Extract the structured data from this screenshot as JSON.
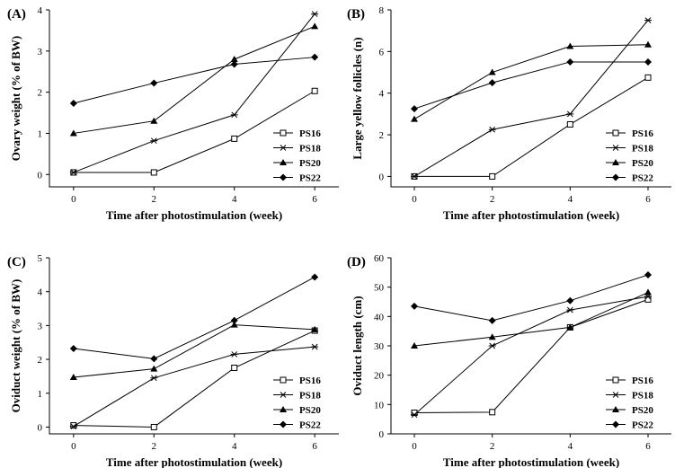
{
  "figure": {
    "legend_entries": [
      "PS16",
      "PS18",
      "PS20",
      "PS22"
    ]
  },
  "chart_data": [
    {
      "type": "line",
      "panel": "(A)",
      "xlabel": "Time after photostimulation (week)",
      "ylabel": "Ovary weight (% of BW)",
      "x": [
        0,
        2,
        4,
        6
      ],
      "xlim": [
        -0.6,
        6.6
      ],
      "ylim": [
        -0.3,
        4
      ],
      "xticks": [
        0,
        2,
        4,
        6
      ],
      "yticks": [
        0,
        1,
        2,
        3,
        4
      ],
      "legend": "lower-right",
      "series": [
        {
          "name": "PS16",
          "marker": "square-open",
          "values": [
            0.05,
            0.05,
            0.87,
            2.03
          ]
        },
        {
          "name": "PS18",
          "marker": "asterisk",
          "values": [
            0.05,
            0.82,
            1.45,
            3.9
          ]
        },
        {
          "name": "PS20",
          "marker": "triangle",
          "values": [
            1.0,
            1.3,
            2.8,
            3.6
          ]
        },
        {
          "name": "PS22",
          "marker": "diamond",
          "values": [
            1.73,
            2.22,
            2.68,
            2.85
          ]
        }
      ]
    },
    {
      "type": "line",
      "panel": "(B)",
      "xlabel": "Time after photostimulation (week)",
      "ylabel": "Large yellow follicles (n)",
      "x": [
        0,
        2,
        4,
        6
      ],
      "xlim": [
        -0.6,
        6.6
      ],
      "ylim": [
        -0.5,
        8
      ],
      "xticks": [
        0,
        2,
        4,
        6
      ],
      "yticks": [
        0,
        2,
        4,
        6,
        8
      ],
      "legend": "lower-right",
      "series": [
        {
          "name": "PS16",
          "marker": "square-open",
          "values": [
            0,
            0,
            2.5,
            4.75
          ]
        },
        {
          "name": "PS18",
          "marker": "asterisk",
          "values": [
            0,
            2.25,
            3.0,
            7.5
          ]
        },
        {
          "name": "PS20",
          "marker": "triangle",
          "values": [
            2.75,
            5.0,
            6.25,
            6.33
          ]
        },
        {
          "name": "PS22",
          "marker": "diamond",
          "values": [
            3.25,
            4.5,
            5.5,
            5.5
          ]
        }
      ]
    },
    {
      "type": "line",
      "panel": "(C)",
      "xlabel": "Time after photostimulation (week)",
      "ylabel": "Oviduct weight (% of BW)",
      "x": [
        0,
        2,
        4,
        6
      ],
      "xlim": [
        -0.6,
        6.6
      ],
      "ylim": [
        -0.2,
        5
      ],
      "xticks": [
        0,
        2,
        4,
        6
      ],
      "yticks": [
        0,
        1,
        2,
        3,
        4,
        5
      ],
      "legend": "lower-right",
      "series": [
        {
          "name": "PS16",
          "marker": "square-open",
          "values": [
            0.05,
            0.0,
            1.75,
            2.85
          ]
        },
        {
          "name": "PS18",
          "marker": "asterisk",
          "values": [
            0.02,
            1.45,
            2.15,
            2.37
          ]
        },
        {
          "name": "PS20",
          "marker": "triangle",
          "values": [
            1.47,
            1.72,
            3.02,
            2.88
          ]
        },
        {
          "name": "PS22",
          "marker": "diamond",
          "values": [
            2.32,
            2.02,
            3.15,
            4.43
          ]
        }
      ]
    },
    {
      "type": "line",
      "panel": "(D)",
      "xlabel": "Time after photostimulation (week)",
      "ylabel": "Oviduct length (cm)",
      "x": [
        0,
        2,
        4,
        6
      ],
      "xlim": [
        -0.6,
        6.6
      ],
      "ylim": [
        0,
        60
      ],
      "xticks": [
        0,
        2,
        4,
        6
      ],
      "yticks": [
        0,
        10,
        20,
        30,
        40,
        50,
        60
      ],
      "legend": "lower-right",
      "series": [
        {
          "name": "PS16",
          "marker": "square-open",
          "values": [
            7.2,
            7.4,
            36.3,
            45.8
          ]
        },
        {
          "name": "PS18",
          "marker": "asterisk",
          "values": [
            6.5,
            30.0,
            42.2,
            46.8
          ]
        },
        {
          "name": "PS20",
          "marker": "triangle",
          "values": [
            30.0,
            33.0,
            36.3,
            48.2
          ]
        },
        {
          "name": "PS22",
          "marker": "diamond",
          "values": [
            43.5,
            38.6,
            45.4,
            54.2
          ]
        }
      ]
    }
  ]
}
